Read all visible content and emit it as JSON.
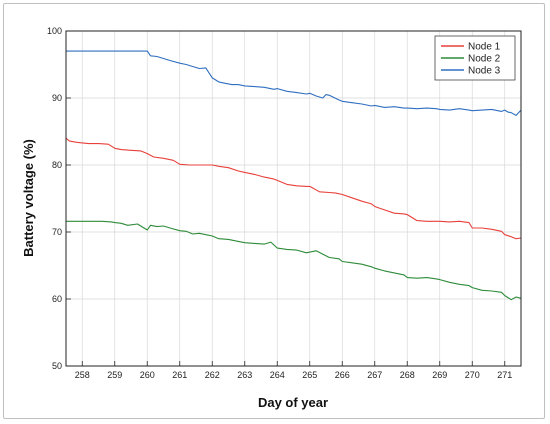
{
  "chart_data": {
    "type": "line",
    "title": "",
    "xlabel": "Day of year",
    "ylabel": "Battery voltage (%)",
    "xlim": [
      257.5,
      271.5
    ],
    "ylim": [
      50,
      100
    ],
    "xticks": [
      258,
      259,
      260,
      261,
      262,
      263,
      264,
      265,
      266,
      267,
      268,
      269,
      270,
      271
    ],
    "yticks": [
      50,
      60,
      70,
      80,
      90,
      100
    ],
    "grid": true,
    "legend_position": "top-right",
    "series": [
      {
        "name": "Node 1",
        "color": "#e8403a",
        "x": [
          257.5,
          257.6,
          257.8,
          258.0,
          258.2,
          258.5,
          258.8,
          259.0,
          259.2,
          259.5,
          259.8,
          260.0,
          260.2,
          260.5,
          260.8,
          261.0,
          261.3,
          261.6,
          261.9,
          262.0,
          262.2,
          262.5,
          262.8,
          263.0,
          263.3,
          263.6,
          263.9,
          264.0,
          264.3,
          264.6,
          264.9,
          265.0,
          265.3,
          265.6,
          265.8,
          266.0,
          266.3,
          266.6,
          266.9,
          267.0,
          267.3,
          267.6,
          267.9,
          268.0,
          268.3,
          268.6,
          268.9,
          269.0,
          269.3,
          269.6,
          269.9,
          270.0,
          270.3,
          270.6,
          270.9,
          271.0,
          271.2,
          271.35,
          271.5
        ],
        "y": [
          84.0,
          83.6,
          83.4,
          83.3,
          83.2,
          83.2,
          83.1,
          82.5,
          82.3,
          82.2,
          82.1,
          81.7,
          81.2,
          81.0,
          80.7,
          80.1,
          80.0,
          80.0,
          80.0,
          80.0,
          79.8,
          79.6,
          79.1,
          78.9,
          78.6,
          78.2,
          77.9,
          77.7,
          77.1,
          76.9,
          76.8,
          76.8,
          76.0,
          75.9,
          75.8,
          75.6,
          75.1,
          74.6,
          74.2,
          73.8,
          73.3,
          72.8,
          72.7,
          72.6,
          71.7,
          71.6,
          71.6,
          71.6,
          71.5,
          71.6,
          71.4,
          70.6,
          70.6,
          70.4,
          70.1,
          69.6,
          69.3,
          69.0,
          69.1
        ]
      },
      {
        "name": "Node 2",
        "color": "#2e8b3a",
        "x": [
          257.5,
          257.8,
          258.0,
          258.3,
          258.6,
          258.9,
          259.0,
          259.2,
          259.4,
          259.7,
          260.0,
          260.1,
          260.3,
          260.5,
          260.7,
          261.0,
          261.2,
          261.4,
          261.6,
          261.8,
          262.0,
          262.2,
          262.5,
          262.8,
          263.0,
          263.3,
          263.6,
          263.8,
          264.0,
          264.3,
          264.6,
          264.9,
          265.0,
          265.2,
          265.4,
          265.6,
          265.9,
          266.0,
          266.3,
          266.6,
          266.9,
          267.0,
          267.3,
          267.6,
          267.9,
          268.0,
          268.3,
          268.6,
          268.9,
          269.0,
          269.3,
          269.6,
          269.9,
          270.0,
          270.3,
          270.6,
          270.9,
          271.0,
          271.2,
          271.35,
          271.5
        ],
        "y": [
          71.6,
          71.6,
          71.6,
          71.6,
          71.6,
          71.5,
          71.4,
          71.3,
          71.0,
          71.2,
          70.3,
          71.0,
          70.8,
          70.9,
          70.6,
          70.2,
          70.1,
          69.7,
          69.8,
          69.6,
          69.4,
          69.0,
          68.9,
          68.6,
          68.4,
          68.3,
          68.2,
          68.5,
          67.6,
          67.4,
          67.3,
          66.9,
          67.0,
          67.2,
          66.7,
          66.2,
          66.0,
          65.6,
          65.4,
          65.2,
          64.8,
          64.6,
          64.2,
          63.9,
          63.6,
          63.2,
          63.1,
          63.2,
          63.0,
          62.9,
          62.5,
          62.2,
          62.0,
          61.7,
          61.3,
          61.2,
          61.0,
          60.5,
          59.9,
          60.3,
          60.1
        ]
      },
      {
        "name": "Node 3",
        "color": "#2f6fc0",
        "x": [
          257.5,
          258.0,
          258.5,
          259.0,
          259.5,
          260.0,
          260.1,
          260.3,
          260.5,
          260.7,
          261.0,
          261.2,
          261.4,
          261.6,
          261.8,
          262.0,
          262.2,
          262.4,
          262.6,
          262.8,
          263.0,
          263.3,
          263.6,
          263.9,
          264.0,
          264.3,
          264.6,
          264.9,
          265.0,
          265.2,
          265.4,
          265.5,
          265.6,
          265.9,
          266.0,
          266.3,
          266.6,
          266.9,
          267.0,
          267.3,
          267.6,
          267.9,
          268.0,
          268.3,
          268.6,
          268.9,
          269.0,
          269.3,
          269.6,
          269.9,
          270.0,
          270.3,
          270.6,
          270.9,
          271.0,
          271.1,
          271.2,
          271.35,
          271.5
        ],
        "y": [
          97.0,
          97.0,
          97.0,
          97.0,
          97.0,
          97.0,
          96.3,
          96.2,
          95.9,
          95.6,
          95.2,
          95.0,
          94.7,
          94.4,
          94.5,
          93.0,
          92.4,
          92.2,
          92.0,
          92.0,
          91.8,
          91.7,
          91.6,
          91.3,
          91.4,
          91.0,
          90.8,
          90.6,
          90.7,
          90.3,
          90.0,
          90.5,
          90.4,
          89.7,
          89.5,
          89.3,
          89.1,
          88.8,
          88.9,
          88.6,
          88.7,
          88.5,
          88.5,
          88.4,
          88.5,
          88.4,
          88.3,
          88.2,
          88.4,
          88.2,
          88.1,
          88.2,
          88.3,
          88.0,
          88.2,
          87.9,
          87.8,
          87.4,
          88.2
        ]
      }
    ]
  }
}
